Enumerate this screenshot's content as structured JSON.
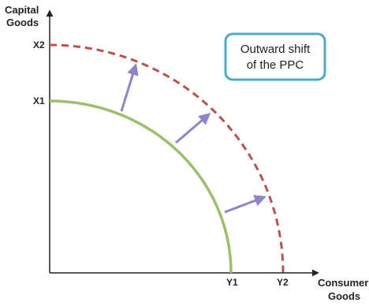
{
  "diagram": {
    "y_axis_label_line1": "Capital",
    "y_axis_label_line2": "Goods",
    "x_axis_label_line1": "Consumer",
    "x_axis_label_line2": "Goods",
    "inner_ppc": {
      "y_intercept": "X1",
      "x_intercept": "Y1"
    },
    "outer_ppc": {
      "y_intercept": "X2",
      "x_intercept": "Y2"
    },
    "callout_line1": "Outward shift",
    "callout_line2": "of the PPC",
    "colors": {
      "inner_ppc": "#9bc06a",
      "outer_ppc": "#c0504d",
      "arrows": "#8f84c8",
      "callout_border": "#4bacc6",
      "axes": "#222222"
    }
  }
}
